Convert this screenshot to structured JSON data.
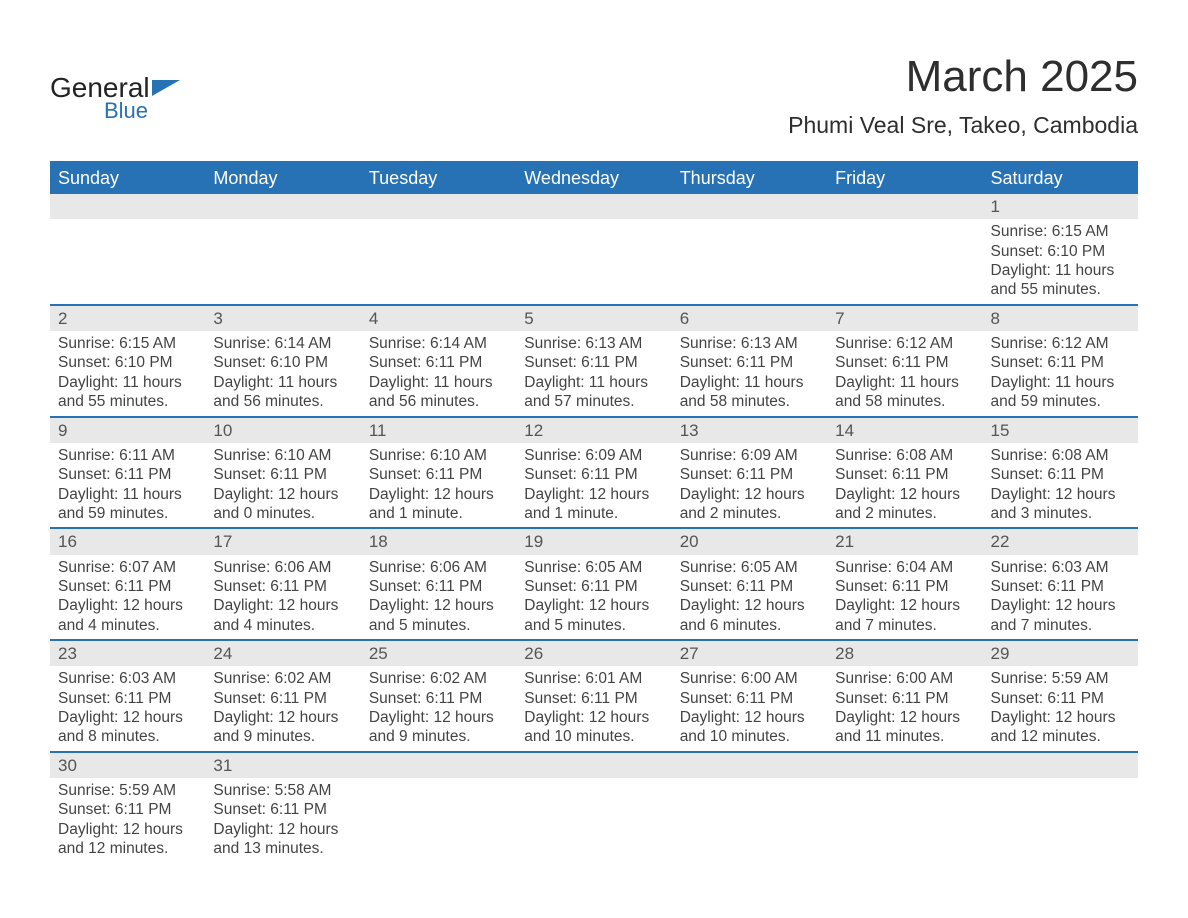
{
  "brand": {
    "line1": "General",
    "line2": "Blue",
    "accent_color": "#2772b4"
  },
  "title": "March 2025",
  "location": "Phumi Veal Sre, Takeo, Cambodia",
  "calendar": {
    "header_bg": "#2772b4",
    "header_fg": "#ffffff",
    "row_sep_color": "#2772b4",
    "daynum_bg": "#e8e8e8",
    "text_color": "#444444",
    "columns": [
      "Sunday",
      "Monday",
      "Tuesday",
      "Wednesday",
      "Thursday",
      "Friday",
      "Saturday"
    ],
    "weeks": [
      [
        null,
        null,
        null,
        null,
        null,
        null,
        {
          "n": "1",
          "sunrise": "6:15 AM",
          "sunset": "6:10 PM",
          "dl": "11 hours and 55 minutes."
        }
      ],
      [
        {
          "n": "2",
          "sunrise": "6:15 AM",
          "sunset": "6:10 PM",
          "dl": "11 hours and 55 minutes."
        },
        {
          "n": "3",
          "sunrise": "6:14 AM",
          "sunset": "6:10 PM",
          "dl": "11 hours and 56 minutes."
        },
        {
          "n": "4",
          "sunrise": "6:14 AM",
          "sunset": "6:11 PM",
          "dl": "11 hours and 56 minutes."
        },
        {
          "n": "5",
          "sunrise": "6:13 AM",
          "sunset": "6:11 PM",
          "dl": "11 hours and 57 minutes."
        },
        {
          "n": "6",
          "sunrise": "6:13 AM",
          "sunset": "6:11 PM",
          "dl": "11 hours and 58 minutes."
        },
        {
          "n": "7",
          "sunrise": "6:12 AM",
          "sunset": "6:11 PM",
          "dl": "11 hours and 58 minutes."
        },
        {
          "n": "8",
          "sunrise": "6:12 AM",
          "sunset": "6:11 PM",
          "dl": "11 hours and 59 minutes."
        }
      ],
      [
        {
          "n": "9",
          "sunrise": "6:11 AM",
          "sunset": "6:11 PM",
          "dl": "11 hours and 59 minutes."
        },
        {
          "n": "10",
          "sunrise": "6:10 AM",
          "sunset": "6:11 PM",
          "dl": "12 hours and 0 minutes."
        },
        {
          "n": "11",
          "sunrise": "6:10 AM",
          "sunset": "6:11 PM",
          "dl": "12 hours and 1 minute."
        },
        {
          "n": "12",
          "sunrise": "6:09 AM",
          "sunset": "6:11 PM",
          "dl": "12 hours and 1 minute."
        },
        {
          "n": "13",
          "sunrise": "6:09 AM",
          "sunset": "6:11 PM",
          "dl": "12 hours and 2 minutes."
        },
        {
          "n": "14",
          "sunrise": "6:08 AM",
          "sunset": "6:11 PM",
          "dl": "12 hours and 2 minutes."
        },
        {
          "n": "15",
          "sunrise": "6:08 AM",
          "sunset": "6:11 PM",
          "dl": "12 hours and 3 minutes."
        }
      ],
      [
        {
          "n": "16",
          "sunrise": "6:07 AM",
          "sunset": "6:11 PM",
          "dl": "12 hours and 4 minutes."
        },
        {
          "n": "17",
          "sunrise": "6:06 AM",
          "sunset": "6:11 PM",
          "dl": "12 hours and 4 minutes."
        },
        {
          "n": "18",
          "sunrise": "6:06 AM",
          "sunset": "6:11 PM",
          "dl": "12 hours and 5 minutes."
        },
        {
          "n": "19",
          "sunrise": "6:05 AM",
          "sunset": "6:11 PM",
          "dl": "12 hours and 5 minutes."
        },
        {
          "n": "20",
          "sunrise": "6:05 AM",
          "sunset": "6:11 PM",
          "dl": "12 hours and 6 minutes."
        },
        {
          "n": "21",
          "sunrise": "6:04 AM",
          "sunset": "6:11 PM",
          "dl": "12 hours and 7 minutes."
        },
        {
          "n": "22",
          "sunrise": "6:03 AM",
          "sunset": "6:11 PM",
          "dl": "12 hours and 7 minutes."
        }
      ],
      [
        {
          "n": "23",
          "sunrise": "6:03 AM",
          "sunset": "6:11 PM",
          "dl": "12 hours and 8 minutes."
        },
        {
          "n": "24",
          "sunrise": "6:02 AM",
          "sunset": "6:11 PM",
          "dl": "12 hours and 9 minutes."
        },
        {
          "n": "25",
          "sunrise": "6:02 AM",
          "sunset": "6:11 PM",
          "dl": "12 hours and 9 minutes."
        },
        {
          "n": "26",
          "sunrise": "6:01 AM",
          "sunset": "6:11 PM",
          "dl": "12 hours and 10 minutes."
        },
        {
          "n": "27",
          "sunrise": "6:00 AM",
          "sunset": "6:11 PM",
          "dl": "12 hours and 10 minutes."
        },
        {
          "n": "28",
          "sunrise": "6:00 AM",
          "sunset": "6:11 PM",
          "dl": "12 hours and 11 minutes."
        },
        {
          "n": "29",
          "sunrise": "5:59 AM",
          "sunset": "6:11 PM",
          "dl": "12 hours and 12 minutes."
        }
      ],
      [
        {
          "n": "30",
          "sunrise": "5:59 AM",
          "sunset": "6:11 PM",
          "dl": "12 hours and 12 minutes."
        },
        {
          "n": "31",
          "sunrise": "5:58 AM",
          "sunset": "6:11 PM",
          "dl": "12 hours and 13 minutes."
        },
        null,
        null,
        null,
        null,
        null
      ]
    ],
    "labels": {
      "sunrise": "Sunrise:",
      "sunset": "Sunset:",
      "daylight": "Daylight:"
    }
  }
}
